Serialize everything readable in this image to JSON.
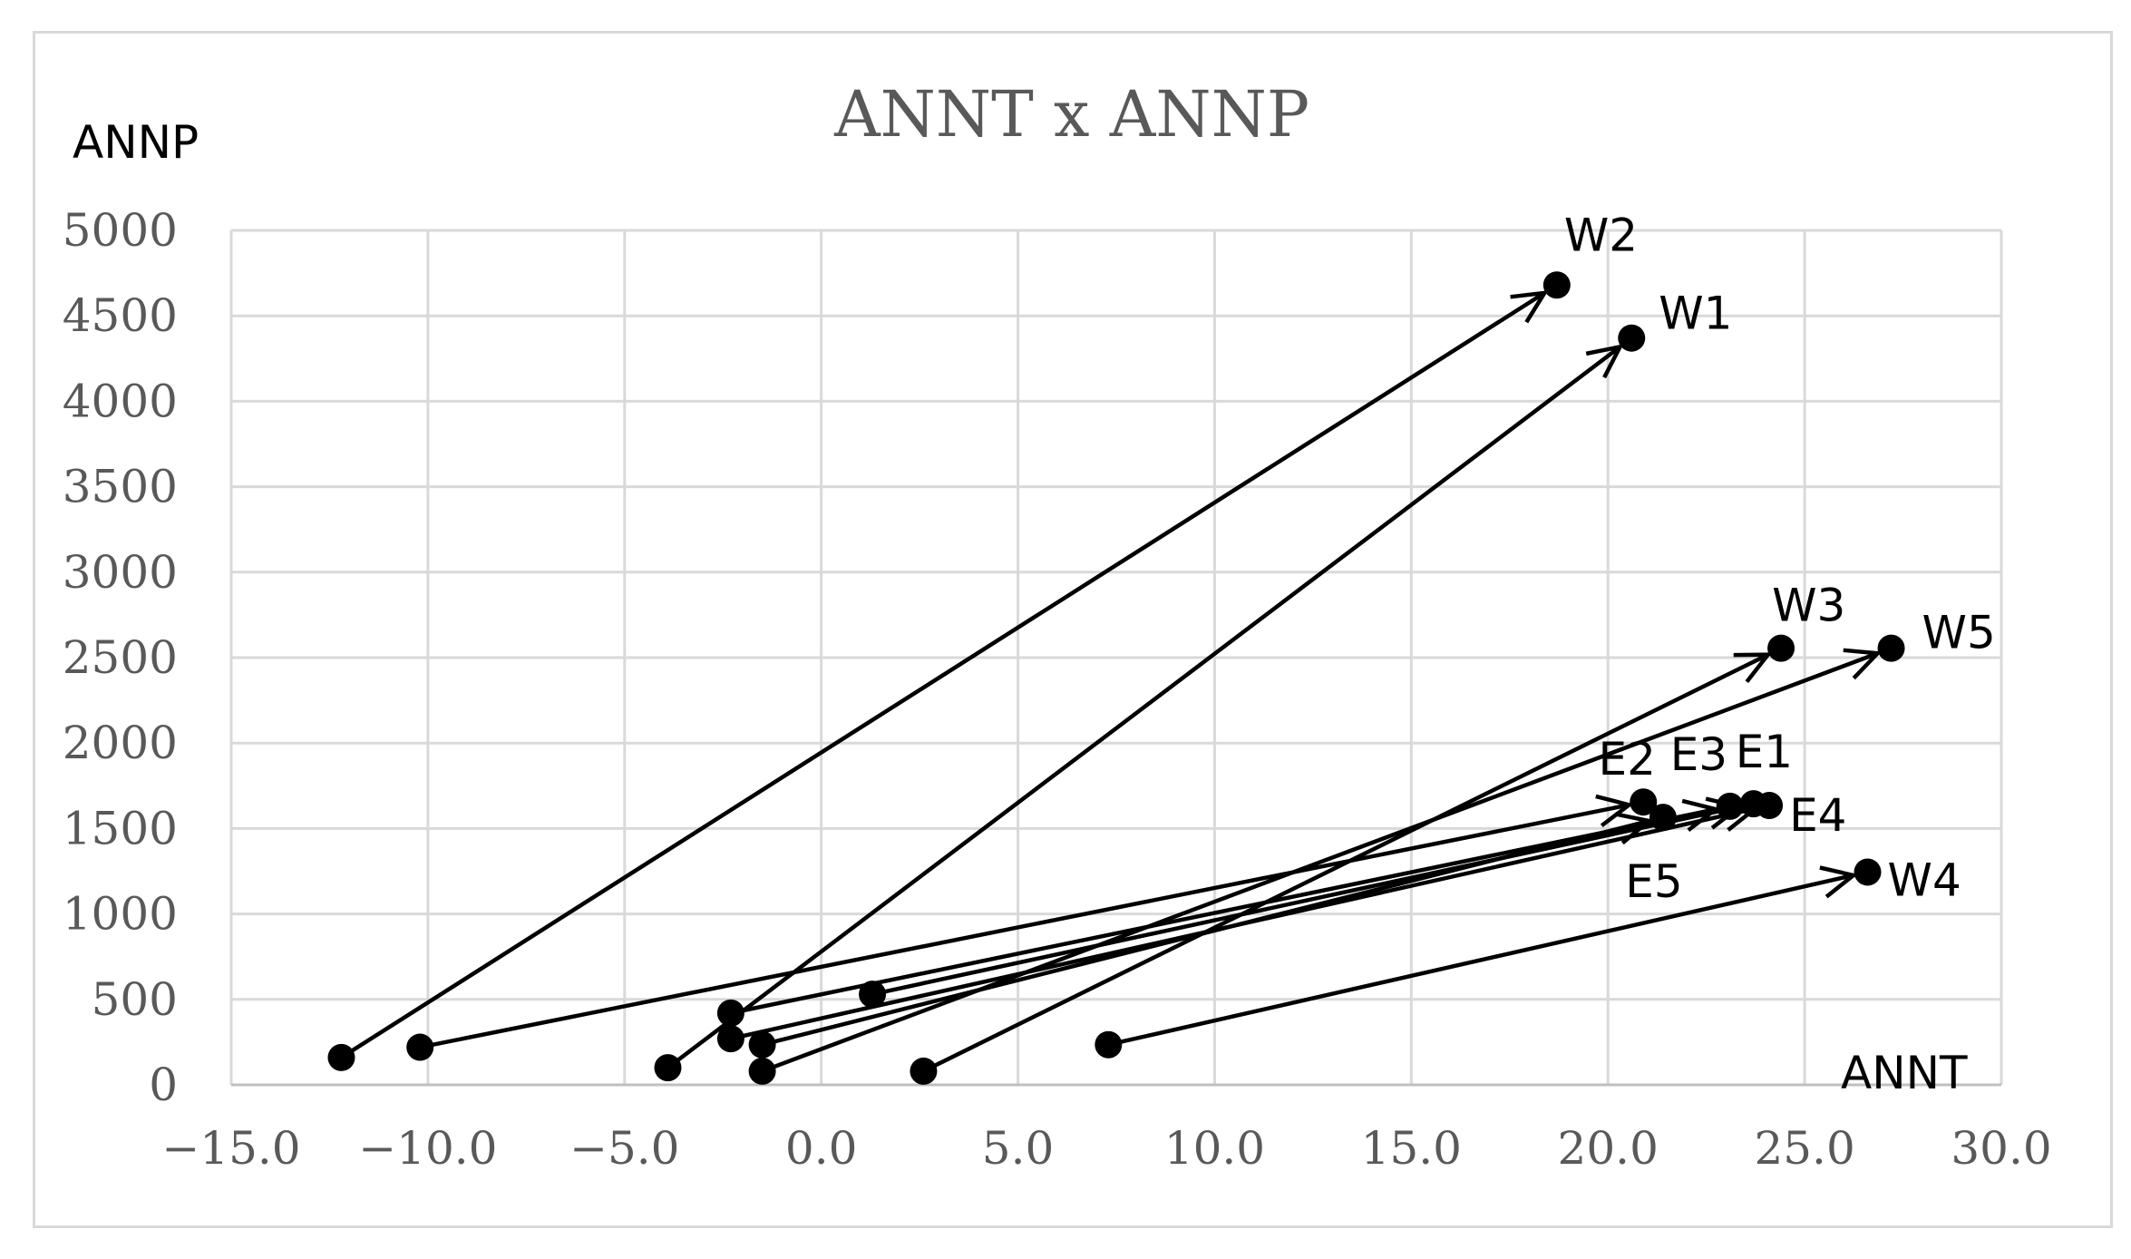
{
  "chart_data": {
    "type": "scatter",
    "title": "ANNT x ANNP",
    "xlabel": "ANNT",
    "ylabel": "ANNP",
    "xlim": [
      -15,
      30
    ],
    "ylim": [
      0,
      5000
    ],
    "xticks": [
      -15,
      -10,
      -5,
      0,
      5,
      10,
      15,
      20,
      25,
      30
    ],
    "xtick_labels": [
      "−15.0",
      "−10.0",
      "−5.0",
      "0.0",
      "5.0",
      "10.0",
      "15.0",
      "20.0",
      "25.0",
      "30.0"
    ],
    "yticks": [
      0,
      500,
      1000,
      1500,
      2000,
      2500,
      3000,
      3500,
      4000,
      4500,
      5000
    ],
    "ytick_labels": [
      "0",
      "500",
      "1000",
      "1500",
      "2000",
      "2500",
      "3000",
      "3500",
      "4000",
      "4500",
      "5000"
    ],
    "grid": true,
    "series": [
      {
        "label": "W2",
        "from": [
          -12.2,
          160
        ],
        "to": [
          18.7,
          4680
        ]
      },
      {
        "label": "W1",
        "from": [
          -3.9,
          100
        ],
        "to": [
          20.6,
          4370
        ]
      },
      {
        "label": "W3",
        "from": [
          2.6,
          80
        ],
        "to": [
          24.4,
          2555
        ]
      },
      {
        "label": "W5",
        "from": [
          -1.5,
          80
        ],
        "to": [
          27.2,
          2555
        ]
      },
      {
        "label": "W4",
        "from": [
          7.3,
          235
        ],
        "to": [
          26.6,
          1245
        ]
      },
      {
        "label": "E2",
        "from": [
          -10.2,
          220
        ],
        "to": [
          20.9,
          1655
        ]
      },
      {
        "label": "E3",
        "from": [
          -2.3,
          420
        ],
        "to": [
          23.1,
          1630
        ]
      },
      {
        "label": "E1",
        "from": [
          1.3,
          530
        ],
        "to": [
          23.7,
          1645
        ]
      },
      {
        "label": "E4",
        "from": [
          -2.3,
          270
        ],
        "to": [
          24.1,
          1635
        ]
      },
      {
        "label": "E5",
        "from": [
          -1.5,
          235
        ],
        "to": [
          21.4,
          1565
        ]
      }
    ]
  }
}
